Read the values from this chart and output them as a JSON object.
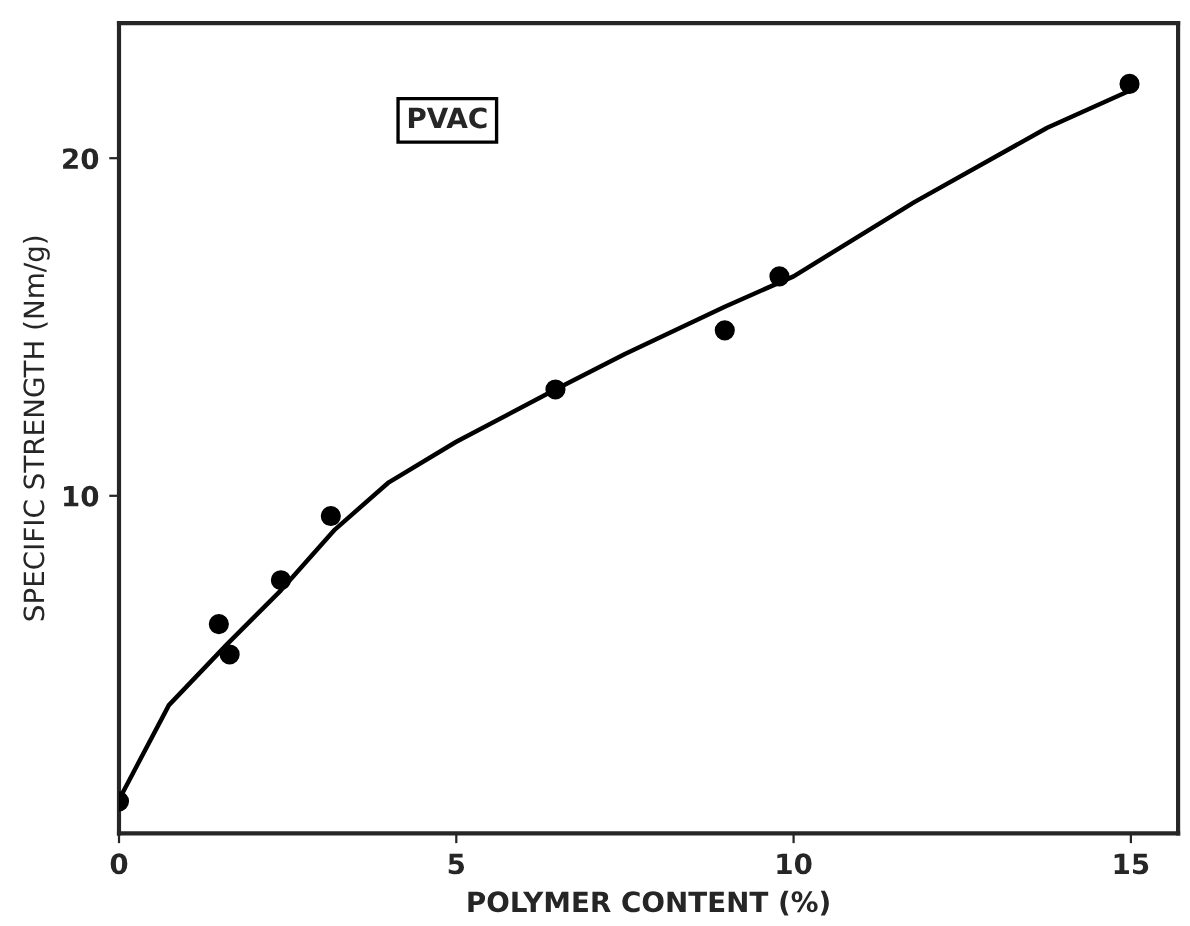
{
  "chart_data": {
    "type": "scatter",
    "xlabel": "POLYMER CONTENT (%)",
    "ylabel": "SPECIFIC STRENGTH (Nm/g)",
    "annotations": [
      "PVAC"
    ],
    "series": [
      {
        "color": "#000000",
        "marker": "circle",
        "x": [
          0,
          1.48,
          1.64,
          2.4,
          3.14,
          6.47,
          8.98,
          9.79,
          14.98
        ],
        "values": [
          0.95,
          6.2,
          5.3,
          7.5,
          9.4,
          13.15,
          14.9,
          16.5,
          22.2
        ]
      },
      {
        "type": "line",
        "color": "#000000",
        "line_style": "solid",
        "x": [
          0,
          0.74,
          1.6,
          2.4,
          3.2,
          4,
          5,
          6.47,
          7.5,
          8.98,
          10,
          11.79,
          13.76,
          14.98
        ],
        "values": [
          1.0,
          3.8,
          5.6,
          7.2,
          9.0,
          10.4,
          11.6,
          13.15,
          14.2,
          15.6,
          16.5,
          18.7,
          20.9,
          22.0
        ]
      }
    ],
    "xlim": [
      0,
      15.7
    ],
    "ylim": [
      0,
      24
    ],
    "xticks": [
      0,
      5,
      10,
      15
    ],
    "yticks": [
      10,
      20
    ],
    "grid": false,
    "legend": false
  }
}
